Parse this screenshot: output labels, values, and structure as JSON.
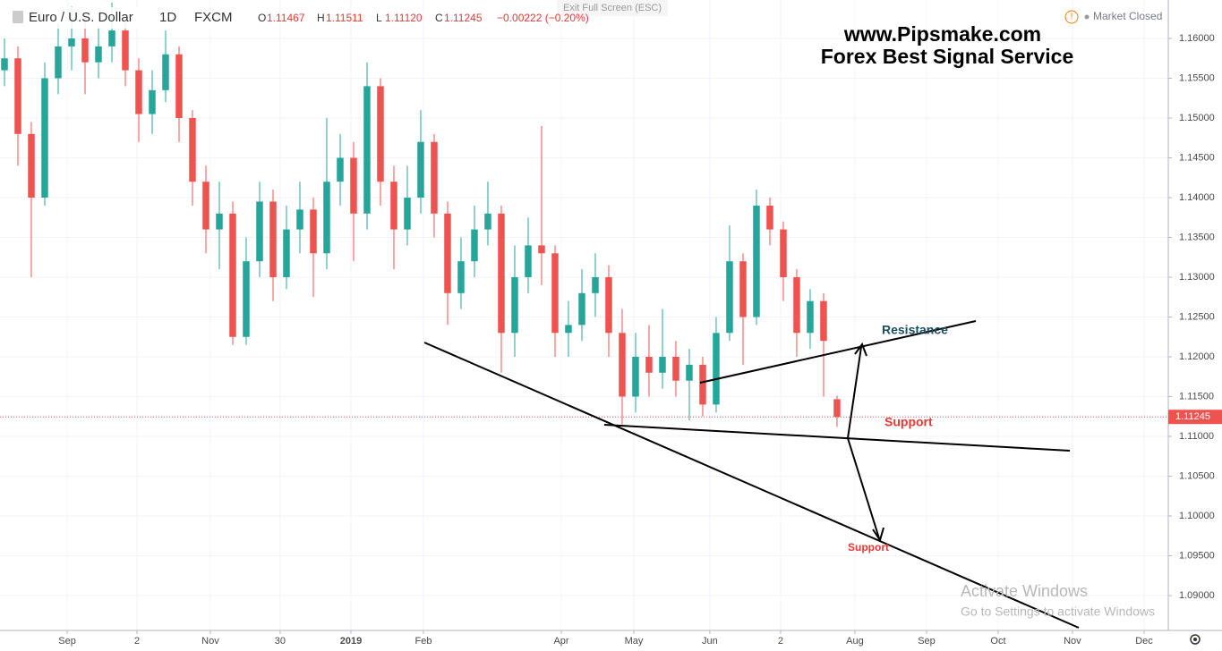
{
  "header": {
    "symbol": "Euro / U.S. Dollar",
    "interval": "1D",
    "source": "FXCM",
    "ohlc": [
      {
        "key": "O",
        "value": "1.11467"
      },
      {
        "key": "H",
        "value": "1.11511"
      },
      {
        "key": "L",
        "value": "1.11120"
      },
      {
        "key": "C",
        "value": "1.11245"
      }
    ],
    "change": "−0.00222 (−0.20%)",
    "fullscreen_hint": "Exit Full Screen (ESC)",
    "status": "Market Closed"
  },
  "watermark": {
    "line1": "Activate Windows",
    "line2": "Go to Settings to activate Windows"
  },
  "chart_data": {
    "type": "candlestick",
    "title": "www.Pipsmake.com",
    "subtitle": "Forex Best Signal Service",
    "up_color": "#26a69a",
    "down_color": "#ef5350",
    "grid": true,
    "x": [
      0,
      1,
      2,
      3,
      4,
      5,
      6,
      7,
      8,
      9,
      10,
      11,
      12,
      13,
      14,
      15,
      16,
      17,
      18,
      19,
      20,
      21,
      22,
      23,
      24,
      25,
      26,
      27,
      28,
      29,
      30,
      31,
      32,
      33,
      34,
      35,
      36,
      37,
      38,
      39,
      40,
      41,
      42,
      43,
      44,
      45,
      46,
      47,
      48,
      49,
      50,
      51,
      52,
      53,
      54,
      55,
      56,
      57,
      58,
      59,
      60,
      61,
      62
    ],
    "open": [
      1.156,
      1.1575,
      1.148,
      1.14,
      1.155,
      1.159,
      1.16,
      1.157,
      1.159,
      1.161,
      1.156,
      1.1505,
      1.1535,
      1.158,
      1.15,
      1.142,
      1.136,
      1.138,
      1.1225,
      1.132,
      1.1395,
      1.13,
      1.136,
      1.1385,
      1.133,
      1.142,
      1.145,
      1.138,
      1.154,
      1.142,
      1.136,
      1.14,
      1.147,
      1.138,
      1.128,
      1.132,
      1.136,
      1.138,
      1.123,
      1.13,
      1.134,
      1.133,
      1.123,
      1.124,
      1.128,
      1.13,
      1.123,
      1.115,
      1.12,
      1.118,
      1.12,
      1.117,
      1.119,
      1.114,
      1.123,
      1.132,
      1.125,
      1.139,
      1.136,
      1.13,
      1.123,
      1.127,
      1.11467
    ],
    "high": [
      1.16,
      1.159,
      1.1495,
      1.157,
      1.162,
      1.164,
      1.163,
      1.1615,
      1.1645,
      1.1625,
      1.1575,
      1.156,
      1.161,
      1.159,
      1.151,
      1.144,
      1.142,
      1.1395,
      1.135,
      1.142,
      1.141,
      1.139,
      1.142,
      1.14,
      1.15,
      1.148,
      1.147,
      1.157,
      1.155,
      1.144,
      1.144,
      1.151,
      1.148,
      1.1395,
      1.135,
      1.139,
      1.142,
      1.139,
      1.134,
      1.1375,
      1.149,
      1.134,
      1.127,
      1.131,
      1.133,
      1.1315,
      1.126,
      1.123,
      1.124,
      1.126,
      1.122,
      1.121,
      1.12,
      1.125,
      1.1365,
      1.133,
      1.141,
      1.14,
      1.137,
      1.131,
      1.1285,
      1.128,
      1.11511
    ],
    "low": [
      1.154,
      1.144,
      1.13,
      1.139,
      1.153,
      1.156,
      1.153,
      1.155,
      1.157,
      1.154,
      1.147,
      1.148,
      1.152,
      1.147,
      1.139,
      1.133,
      1.131,
      1.1215,
      1.1215,
      1.13,
      1.127,
      1.1285,
      1.133,
      1.1275,
      1.131,
      1.139,
      1.132,
      1.136,
      1.139,
      1.131,
      1.134,
      1.138,
      1.135,
      1.124,
      1.126,
      1.13,
      1.134,
      1.118,
      1.12,
      1.128,
      1.129,
      1.12,
      1.12,
      1.122,
      1.125,
      1.12,
      1.1115,
      1.113,
      1.115,
      1.116,
      1.115,
      1.112,
      1.1125,
      1.113,
      1.122,
      1.119,
      1.124,
      1.134,
      1.127,
      1.12,
      1.121,
      1.115,
      1.1112
    ],
    "close": [
      1.1575,
      1.148,
      1.14,
      1.155,
      1.159,
      1.16,
      1.157,
      1.159,
      1.161,
      1.156,
      1.1505,
      1.1535,
      1.158,
      1.15,
      1.142,
      1.136,
      1.138,
      1.1225,
      1.132,
      1.1395,
      1.13,
      1.136,
      1.1385,
      1.133,
      1.142,
      1.145,
      1.138,
      1.154,
      1.142,
      1.136,
      1.14,
      1.147,
      1.138,
      1.128,
      1.132,
      1.136,
      1.138,
      1.123,
      1.13,
      1.134,
      1.133,
      1.123,
      1.124,
      1.128,
      1.13,
      1.123,
      1.115,
      1.12,
      1.118,
      1.12,
      1.117,
      1.119,
      1.114,
      1.123,
      1.132,
      1.125,
      1.139,
      1.136,
      1.13,
      1.123,
      1.127,
      1.122,
      1.11245
    ],
    "last_price": 1.11245,
    "ylim": [
      1.08562,
      1.16483
    ],
    "yticks": [
      {
        "value": 1.09,
        "label": "1.09000"
      },
      {
        "value": 1.095,
        "label": "1.09500"
      },
      {
        "value": 1.1,
        "label": "1.10000"
      },
      {
        "value": 1.105,
        "label": "1.10500"
      },
      {
        "value": 1.11,
        "label": "1.11000"
      },
      {
        "value": 1.115,
        "label": "1.11500"
      },
      {
        "value": 1.12,
        "label": "1.12000"
      },
      {
        "value": 1.125,
        "label": "1.12500"
      },
      {
        "value": 1.13,
        "label": "1.13000"
      },
      {
        "value": 1.135,
        "label": "1.13500"
      },
      {
        "value": 1.14,
        "label": "1.14000"
      },
      {
        "value": 1.145,
        "label": "1.14500"
      },
      {
        "value": 1.15,
        "label": "1.15000"
      },
      {
        "value": 1.155,
        "label": "1.15500"
      },
      {
        "value": 1.16,
        "label": "1.16000"
      }
    ],
    "xlim": [
      -0.333,
      86.67
    ],
    "xticks": [
      {
        "value": 4.67,
        "label": "Sep"
      },
      {
        "value": 9.87,
        "label": "2"
      },
      {
        "value": 15.33,
        "label": "Nov"
      },
      {
        "value": 20.53,
        "label": "30"
      },
      {
        "value": 25.8,
        "label": "2019"
      },
      {
        "value": 31.2,
        "label": "Feb"
      },
      {
        "value": 41.47,
        "label": "Apr"
      },
      {
        "value": 46.87,
        "label": "May"
      },
      {
        "value": 52.53,
        "label": "Jun"
      },
      {
        "value": 57.8,
        "label": "2"
      },
      {
        "value": 63.33,
        "label": "Aug"
      },
      {
        "value": 68.67,
        "label": "Sep"
      },
      {
        "value": 74,
        "label": "Oct"
      },
      {
        "value": 79.53,
        "label": "Nov"
      },
      {
        "value": 84.87,
        "label": "Dec"
      }
    ],
    "annotations": [
      "Resistance",
      "Support",
      "Support"
    ]
  }
}
